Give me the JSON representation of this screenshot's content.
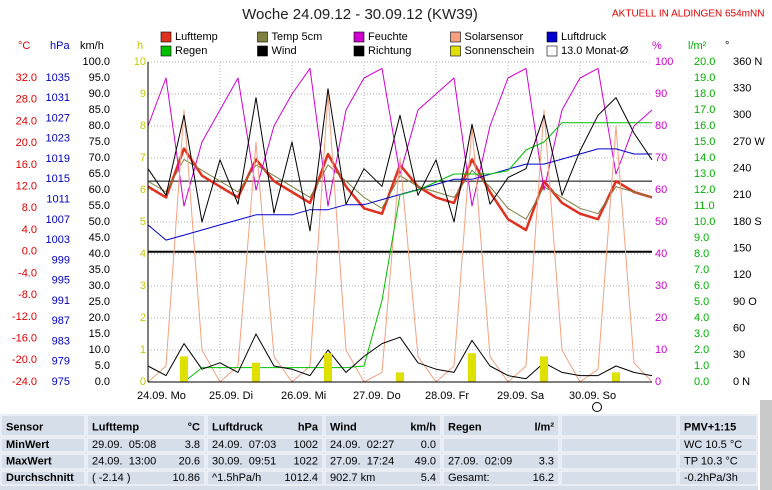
{
  "chart_data": {
    "type": "line",
    "title": "Woche 24.09.12 - 30.09.12 (KW39)",
    "subtitle": "AKTUELL IN ALDINGEN 654mNN",
    "xlim": [
      0,
      168
    ],
    "xticks": [
      {
        "value": 0,
        "label": "24.09. Mo"
      },
      {
        "value": 24,
        "label": "25.09. Di"
      },
      {
        "value": 48,
        "label": "26.09. Mi"
      },
      {
        "value": 72,
        "label": "27.09. Do"
      },
      {
        "value": 96,
        "label": "28.09. Fr"
      },
      {
        "value": 120,
        "label": "29.09. Sa"
      },
      {
        "value": 144,
        "label": "30.09. So"
      }
    ],
    "x": [
      0,
      6,
      12,
      18,
      24,
      30,
      36,
      42,
      48,
      54,
      60,
      66,
      72,
      78,
      84,
      90,
      96,
      102,
      108,
      114,
      120,
      126,
      132,
      138,
      144,
      150,
      156,
      162,
      168
    ],
    "axes": [
      {
        "id": "temp",
        "label": "°C",
        "color": "#e00000",
        "ylim": [
          -24,
          34.95
        ],
        "yticks": [
          {
            "value": 32,
            "label": "32.0"
          },
          {
            "value": 28,
            "label": "28.0"
          },
          {
            "value": 24,
            "label": "24.0"
          },
          {
            "value": 20,
            "label": "20.0"
          },
          {
            "value": 16,
            "label": "16.0"
          },
          {
            "value": 12,
            "label": "12.0"
          },
          {
            "value": 8,
            "label": "8.0"
          },
          {
            "value": 4,
            "label": "4.0"
          },
          {
            "value": 0,
            "label": "0.0"
          },
          {
            "value": -4,
            "label": "-4.0"
          },
          {
            "value": -8,
            "label": "-8.0"
          },
          {
            "value": -12,
            "label": "-12.0"
          },
          {
            "value": -16,
            "label": "-16.0"
          },
          {
            "value": -20,
            "label": "-20.0"
          },
          {
            "value": -24,
            "label": "-24.0"
          }
        ]
      },
      {
        "id": "press",
        "label": "hPa",
        "color": "#0000c0",
        "ylim": [
          975,
          1038.16
        ],
        "yticks": [
          1035,
          1031,
          1027,
          1023,
          1019,
          1015,
          1011,
          1007,
          1003,
          999,
          995,
          991,
          987,
          983,
          979,
          975
        ]
      },
      {
        "id": "wind",
        "label": "km/h",
        "color": "#000000",
        "ylim": [
          0,
          100
        ],
        "yticks": [
          {
            "value": 100,
            "label": "100.0"
          },
          {
            "value": 95,
            "label": "95.0"
          },
          {
            "value": 90,
            "label": "90.0"
          },
          {
            "value": 85,
            "label": "85.0"
          },
          {
            "value": 80,
            "label": "80.0"
          },
          {
            "value": 75,
            "label": "75.0"
          },
          {
            "value": 70,
            "label": "70.0"
          },
          {
            "value": 65,
            "label": "65.0"
          },
          {
            "value": 60,
            "label": "60.0"
          },
          {
            "value": 55,
            "label": "55.0"
          },
          {
            "value": 50,
            "label": "50.0"
          },
          {
            "value": 45,
            "label": "45.0"
          },
          {
            "value": 40,
            "label": "40.0"
          },
          {
            "value": 35,
            "label": "35.0"
          },
          {
            "value": 30,
            "label": "30.0"
          },
          {
            "value": 25,
            "label": "25.0"
          },
          {
            "value": 20,
            "label": "20.0"
          },
          {
            "value": 15,
            "label": "15.0"
          },
          {
            "value": 10,
            "label": "10.0"
          },
          {
            "value": 5,
            "label": "5.0"
          },
          {
            "value": 0,
            "label": "0.0"
          }
        ]
      },
      {
        "id": "sun",
        "label": "h",
        "color": "#c8c800",
        "grid": true,
        "ylim": [
          0,
          10
        ],
        "yticks": [
          10,
          9,
          8,
          7,
          6,
          5,
          4,
          3,
          2,
          1,
          0
        ]
      },
      {
        "id": "hum",
        "label": "%",
        "color": "#d000d0",
        "ylim": [
          0,
          100
        ],
        "yticks": [
          100,
          90,
          80,
          70,
          60,
          50,
          40,
          30,
          20,
          10,
          0
        ]
      },
      {
        "id": "rain",
        "label": "l/m²",
        "color": "#00b000",
        "ylim": [
          0,
          20
        ],
        "yticks": [
          {
            "value": 20,
            "label": "20.0"
          },
          {
            "value": 19,
            "label": "19.0"
          },
          {
            "value": 18,
            "label": "18.0"
          },
          {
            "value": 17,
            "label": "17.0"
          },
          {
            "value": 16,
            "label": "16.0"
          },
          {
            "value": 15,
            "label": "15.0"
          },
          {
            "value": 14,
            "label": "14.0"
          },
          {
            "value": 13,
            "label": "13.0"
          },
          {
            "value": 12,
            "label": "12.0"
          },
          {
            "value": 11,
            "label": "11.0"
          },
          {
            "value": 10,
            "label": "10.0"
          },
          {
            "value": 9,
            "label": "9.0"
          },
          {
            "value": 8,
            "label": "8.0"
          },
          {
            "value": 7,
            "label": "7.0"
          },
          {
            "value": 6,
            "label": "6.0"
          },
          {
            "value": 5,
            "label": "5.0"
          },
          {
            "value": 4,
            "label": "4.0"
          },
          {
            "value": 3,
            "label": "3.0"
          },
          {
            "value": 2,
            "label": "2.0"
          },
          {
            "value": 1,
            "label": "1.0"
          },
          {
            "value": 0,
            "label": "0.0"
          }
        ]
      },
      {
        "id": "dir",
        "label": "°",
        "color": "#000000",
        "ylim": [
          0,
          360
        ],
        "yticks": [
          {
            "value": 360,
            "label": "360 N"
          },
          330,
          300,
          {
            "value": 270,
            "label": "270 W"
          },
          240,
          210,
          {
            "value": 180,
            "label": "180 S"
          },
          150,
          120,
          {
            "value": 90,
            "label": "90 O"
          },
          60,
          30,
          {
            "value": 0,
            "label": "0 N"
          }
        ]
      }
    ],
    "series": [
      {
        "name": "Lufttemp",
        "color": "#e03020",
        "axis": "temp",
        "width": 2.5,
        "values": [
          12,
          10,
          19,
          14,
          12,
          10,
          17,
          13,
          11,
          9,
          18,
          12,
          8,
          7,
          16,
          12,
          10,
          9,
          17,
          11,
          6,
          4,
          13,
          9,
          7,
          6,
          13,
          11,
          10
        ]
      },
      {
        "name": "Temp 5cm",
        "color": "#808040",
        "axis": "temp",
        "width": 1,
        "values": [
          13,
          11,
          17,
          15,
          13,
          11,
          16,
          14,
          12,
          10,
          16,
          13,
          10,
          8,
          14,
          12,
          11,
          10,
          15,
          12,
          8,
          6,
          12,
          10,
          8,
          7,
          12,
          11,
          10
        ]
      },
      {
        "name": "Feuchte",
        "color": "#d000d0",
        "axis": "hum",
        "width": 1,
        "values": [
          80,
          95,
          55,
          75,
          85,
          95,
          60,
          80,
          90,
          98,
          55,
          85,
          95,
          98,
          65,
          85,
          90,
          95,
          55,
          80,
          95,
          98,
          60,
          85,
          95,
          98,
          65,
          80,
          85
        ]
      },
      {
        "name": "Solarsensor",
        "color": "#f4a080",
        "axis": "hum",
        "width": 1,
        "values": [
          0,
          5,
          85,
          10,
          0,
          5,
          75,
          8,
          0,
          5,
          90,
          10,
          0,
          3,
          70,
          8,
          0,
          5,
          80,
          8,
          0,
          5,
          85,
          10,
          0,
          4,
          80,
          6,
          0
        ]
      },
      {
        "name": "Luftdruck",
        "color": "#0000d0",
        "axis": "press",
        "width": 1,
        "values": [
          1006,
          1003,
          1004,
          1005,
          1006,
          1007,
          1008,
          1008,
          1008,
          1009,
          1009,
          1010,
          1010,
          1011,
          1012,
          1013,
          1014,
          1015,
          1015,
          1016,
          1017,
          1018,
          1018,
          1019,
          1020,
          1021,
          1021,
          1020,
          1020
        ]
      },
      {
        "name": "Regen",
        "color": "#00c000",
        "axis": "rain",
        "width": 1,
        "values": [
          0,
          0,
          0,
          0.9,
          0.9,
          0.9,
          0.9,
          0.9,
          0.9,
          0.9,
          0.9,
          0.9,
          1,
          5.1,
          11.7,
          12,
          12.5,
          13,
          13,
          13,
          13.2,
          14.5,
          15,
          16.2,
          16.2,
          16.2,
          16.2,
          16.2,
          16.2
        ]
      },
      {
        "name": "Wind",
        "color": "#000000",
        "axis": "wind",
        "width": 1,
        "values": [
          5,
          2,
          12,
          4,
          6,
          3,
          15,
          5,
          4,
          2,
          10,
          3,
          8,
          12,
          14,
          6,
          4,
          3,
          13,
          5,
          2,
          1,
          6,
          3,
          2,
          2,
          5,
          3,
          2
        ]
      },
      {
        "name": "Richtung",
        "color": "#000000",
        "axis": "dir",
        "width": 1,
        "values": [
          240,
          210,
          300,
          180,
          250,
          200,
          320,
          190,
          270,
          170,
          330,
          200,
          240,
          220,
          300,
          210,
          250,
          180,
          290,
          200,
          230,
          240,
          300,
          210,
          260,
          300,
          320,
          280,
          250
        ]
      },
      {
        "name": "Sonnenschein",
        "color": "#e0e000",
        "axis": "sun",
        "kind": "bar",
        "values": [
          0,
          0,
          0.8,
          0,
          0,
          0,
          0.6,
          0,
          0,
          0,
          0.9,
          0,
          0,
          0,
          0.3,
          0,
          0,
          0,
          0.9,
          0,
          0,
          0,
          0.8,
          0,
          0,
          0,
          0.3,
          0,
          0
        ]
      }
    ],
    "reference": {
      "name": "13.0 Monat-Ø",
      "value": 13,
      "axis": "temp",
      "color": "#000000"
    }
  },
  "table": {
    "rows": [
      [
        [
          "Sensor"
        ],
        [
          "Lufttemp",
          "°C"
        ],
        [
          "Luftdruck",
          "hPa"
        ],
        [
          "Wind",
          "km/h"
        ],
        [
          "Regen",
          "l/m²"
        ],
        [],
        [
          "PMV+1:15"
        ]
      ],
      [
        [
          "MinWert"
        ],
        [
          "29.09.  05:08",
          "3.8"
        ],
        [
          "24.09.  07:03",
          "1002"
        ],
        [
          "24.09.  02:27",
          "0.0"
        ],
        [],
        [],
        [
          "WC 10.5 °C"
        ]
      ],
      [
        [
          "MaxWert"
        ],
        [
          "24.09.  13:00",
          "20.6"
        ],
        [
          "30.09.  09:51",
          "1022"
        ],
        [
          "27.09.  17:24",
          "49.0"
        ],
        [
          "27.09.  02:09",
          "3.3"
        ],
        [],
        [
          "TP 10.3 °C"
        ]
      ],
      [
        [
          "Durchschnitt"
        ],
        [
          "( -2.14 )",
          "10.86"
        ],
        [
          "^1.5hPa/h",
          "1012.4"
        ],
        [
          "902.7 km",
          "5.4"
        ],
        [
          "Gesamt:",
          "16.2"
        ],
        [],
        [
          "-0.2hPa/3h"
        ]
      ]
    ]
  }
}
